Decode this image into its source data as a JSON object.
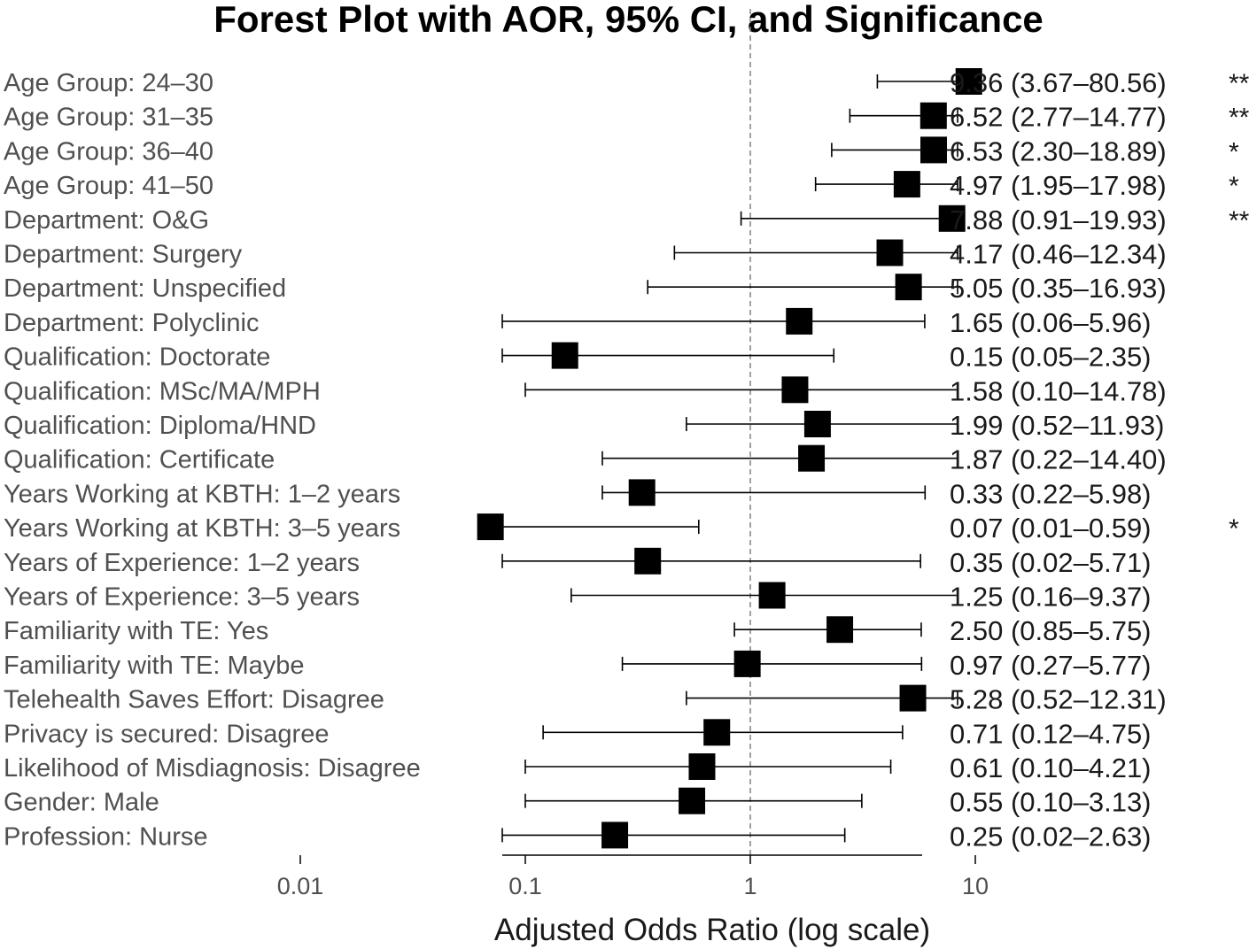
{
  "chart_data": {
    "type": "forest",
    "title": "Forest Plot with AOR, 95% CI, and Significance",
    "xlabel": "Adjusted Odds Ratio (log scale)",
    "xscale": "log",
    "xlim": [
      0.006,
      35
    ],
    "xticks": [
      {
        "value": 0.01,
        "label": "0.01"
      },
      {
        "value": 0.1,
        "label": "0.1"
      },
      {
        "value": 1,
        "label": "1"
      },
      {
        "value": 10,
        "label": "10"
      }
    ],
    "reference_line": 1,
    "rows": [
      {
        "label": "Age Group: 24–30",
        "aor": 9.36,
        "lo": 3.67,
        "hi": 80.56,
        "text": "9.36 (3.67–80.56)",
        "sig": "**"
      },
      {
        "label": "Age Group: 31–35",
        "aor": 6.52,
        "lo": 2.77,
        "hi": 14.77,
        "text": "6.52 (2.77–14.77)",
        "sig": "**"
      },
      {
        "label": "Age Group: 36–40",
        "aor": 6.53,
        "lo": 2.3,
        "hi": 18.89,
        "text": "6.53 (2.30–18.89)",
        "sig": "*"
      },
      {
        "label": "Age Group: 41–50",
        "aor": 4.97,
        "lo": 1.95,
        "hi": 17.98,
        "text": "4.97 (1.95–17.98)",
        "sig": "*"
      },
      {
        "label": "Department: O&G",
        "aor": 7.88,
        "lo": 0.91,
        "hi": 19.93,
        "text": "7.88 (0.91–19.93)",
        "sig": "**"
      },
      {
        "label": "Department: Surgery",
        "aor": 4.17,
        "lo": 0.46,
        "hi": 12.34,
        "text": "4.17 (0.46–12.34)",
        "sig": ""
      },
      {
        "label": "Department: Unspecified",
        "aor": 5.05,
        "lo": 0.35,
        "hi": 16.93,
        "text": "5.05 (0.35–16.93)",
        "sig": ""
      },
      {
        "label": "Department: Polyclinic",
        "aor": 1.65,
        "lo": 0.06,
        "hi": 5.96,
        "text": "1.65 (0.06–5.96)",
        "sig": ""
      },
      {
        "label": "Qualification: Doctorate",
        "aor": 0.15,
        "lo": 0.05,
        "hi": 2.35,
        "text": "0.15 (0.05–2.35)",
        "sig": ""
      },
      {
        "label": "Qualification: MSc/MA/MPH",
        "aor": 1.58,
        "lo": 0.1,
        "hi": 14.78,
        "text": "1.58 (0.10–14.78)",
        "sig": ""
      },
      {
        "label": "Qualification: Diploma/HND",
        "aor": 1.99,
        "lo": 0.52,
        "hi": 11.93,
        "text": "1.99 (0.52–11.93)",
        "sig": ""
      },
      {
        "label": "Qualification: Certificate",
        "aor": 1.87,
        "lo": 0.22,
        "hi": 14.4,
        "text": "1.87 (0.22–14.40)",
        "sig": ""
      },
      {
        "label": "Years Working at KBTH: 1–2 years",
        "aor": 0.33,
        "lo": 0.22,
        "hi": 5.98,
        "text": "0.33 (0.22–5.98)",
        "sig": ""
      },
      {
        "label": "Years Working at KBTH: 3–5 years",
        "aor": 0.07,
        "lo": 0.01,
        "hi": 0.59,
        "text": "0.07 (0.01–0.59)",
        "sig": "*"
      },
      {
        "label": "Years of Experience: 1–2 years",
        "aor": 0.35,
        "lo": 0.02,
        "hi": 5.71,
        "text": "0.35 (0.02–5.71)",
        "sig": ""
      },
      {
        "label": "Years of Experience: 3–5 years",
        "aor": 1.25,
        "lo": 0.16,
        "hi": 9.37,
        "text": "1.25 (0.16–9.37)",
        "sig": ""
      },
      {
        "label": "Familiarity with TE: Yes",
        "aor": 2.5,
        "lo": 0.85,
        "hi": 5.75,
        "text": "2.50 (0.85–5.75)",
        "sig": ""
      },
      {
        "label": "Familiarity with TE: Maybe",
        "aor": 0.97,
        "lo": 0.27,
        "hi": 5.77,
        "text": "0.97 (0.27–5.77)",
        "sig": ""
      },
      {
        "label": "Telehealth Saves Effort: Disagree",
        "aor": 5.28,
        "lo": 0.52,
        "hi": 12.31,
        "text": "5.28 (0.52–12.31)",
        "sig": ""
      },
      {
        "label": "Privacy is secured: Disagree",
        "aor": 0.71,
        "lo": 0.12,
        "hi": 4.75,
        "text": "0.71 (0.12–4.75)",
        "sig": ""
      },
      {
        "label": "Likelihood of Misdiagnosis: Disagree",
        "aor": 0.61,
        "lo": 0.1,
        "hi": 4.21,
        "text": "0.61 (0.10–4.21)",
        "sig": ""
      },
      {
        "label": "Gender: Male",
        "aor": 0.55,
        "lo": 0.1,
        "hi": 3.13,
        "text": "0.55 (0.10–3.13)",
        "sig": ""
      },
      {
        "label": "Profession: Nurse",
        "aor": 0.25,
        "lo": 0.02,
        "hi": 2.63,
        "text": "0.25 (0.02–2.63)",
        "sig": ""
      }
    ],
    "grid": false,
    "legend": "none",
    "colors": {
      "marker": "#000000",
      "reference_line": "#808080",
      "label_text": "#505050"
    }
  }
}
